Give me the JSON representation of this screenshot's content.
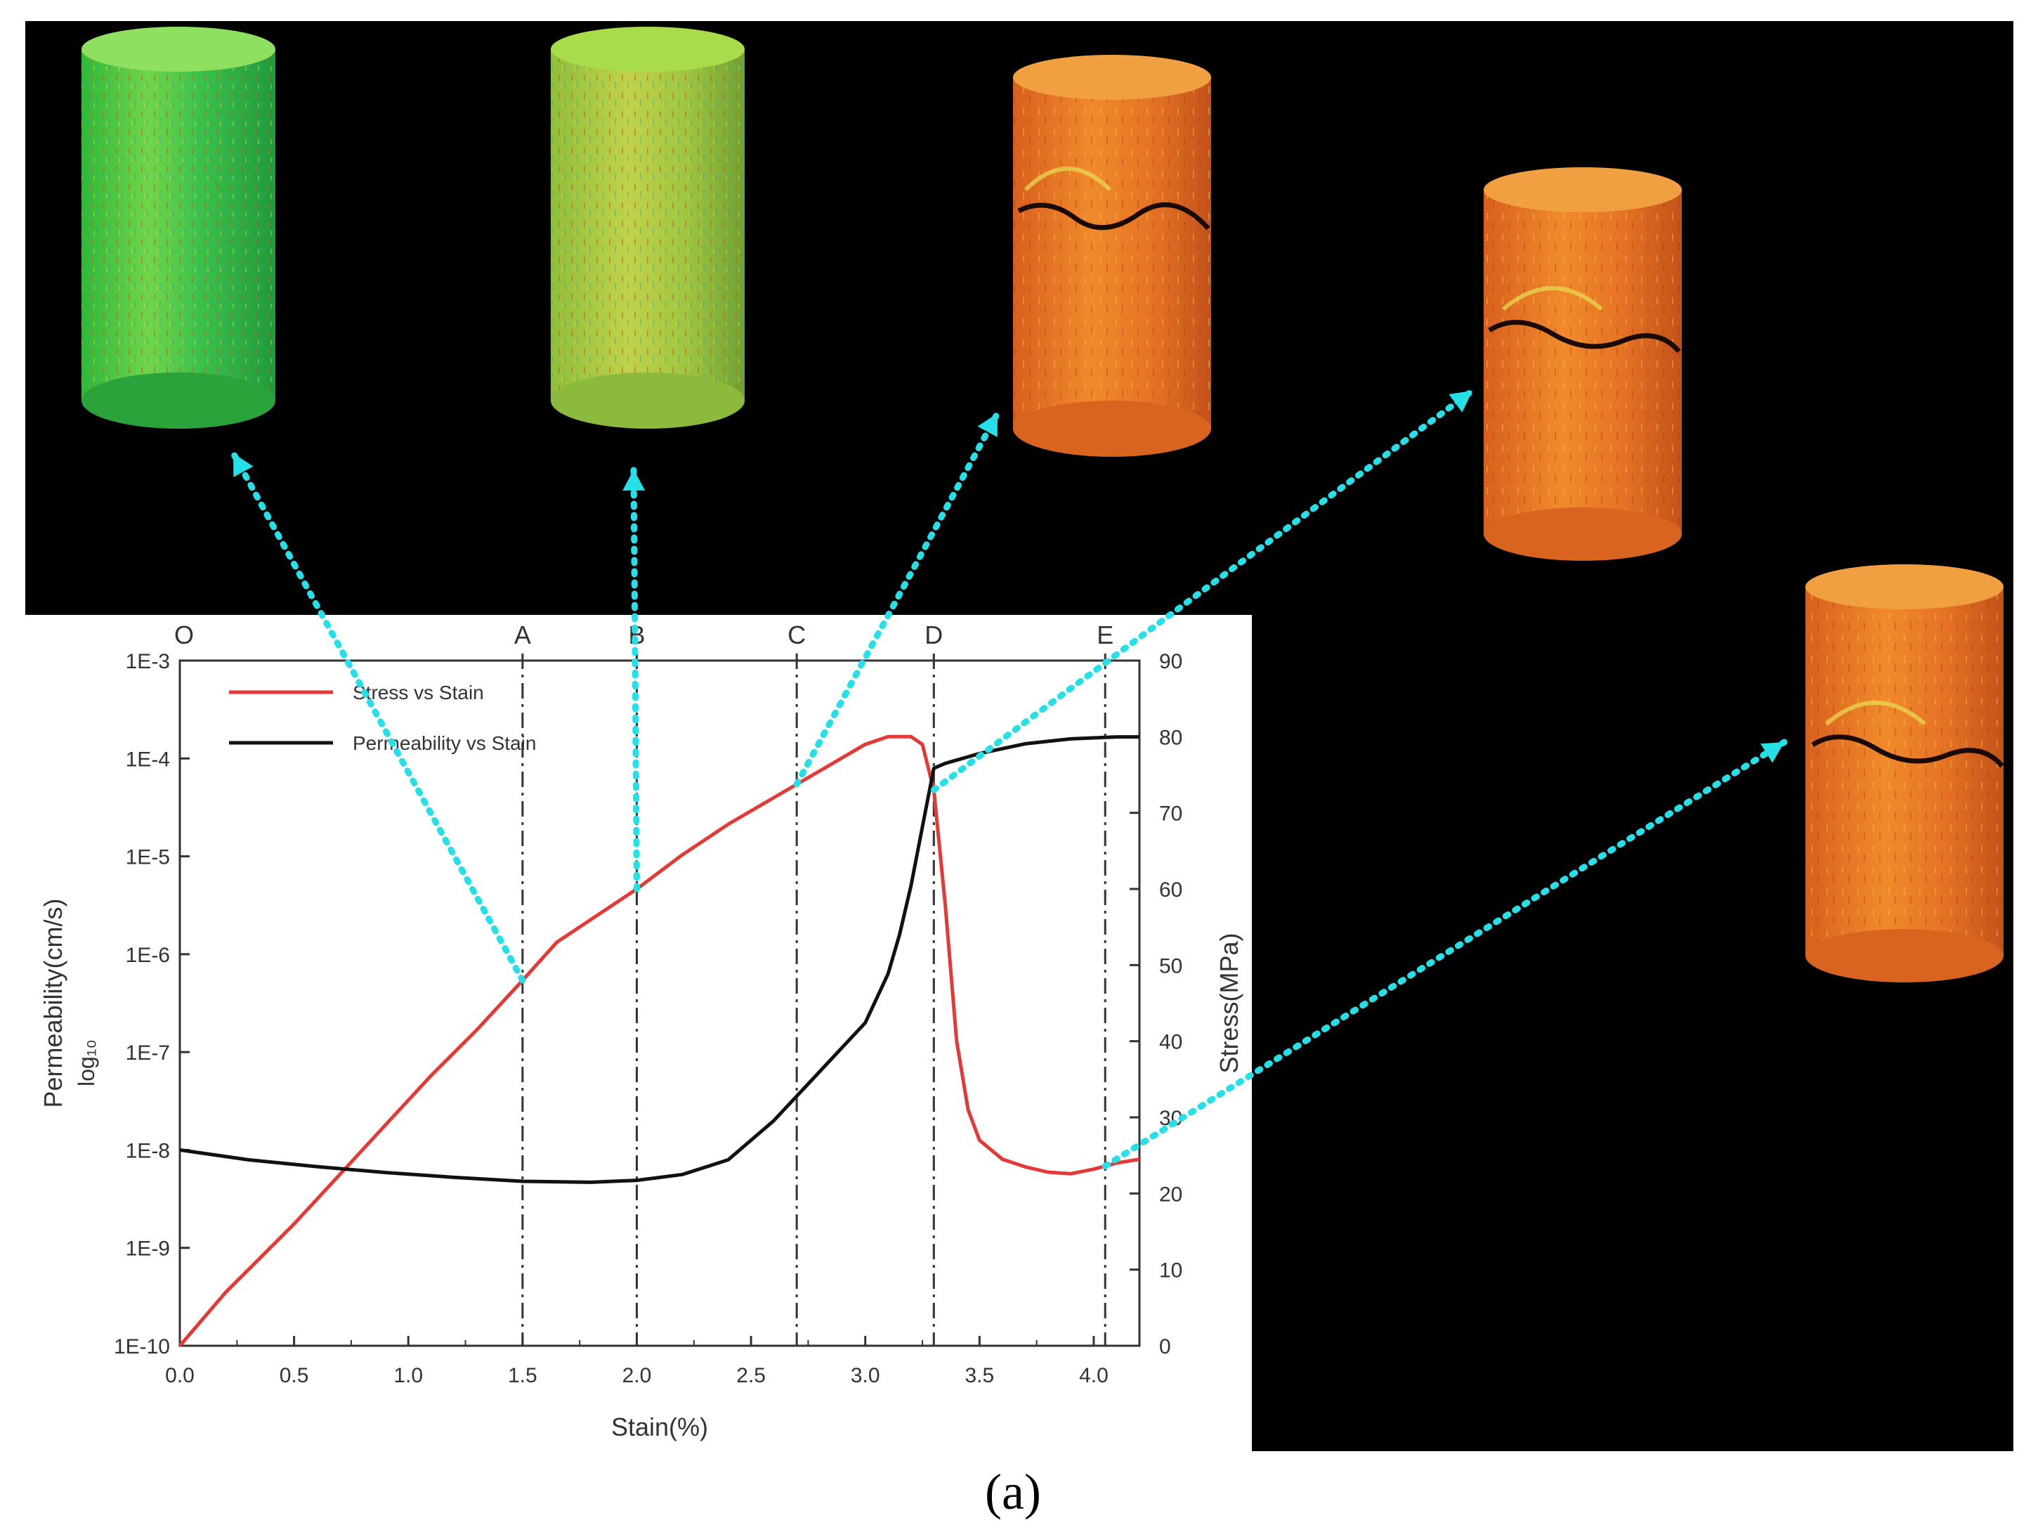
{
  "caption": "(a)",
  "colors": {
    "background": "#000000",
    "plot_panel": "#ffffff",
    "stress": "#e53935",
    "permeability": "#111111",
    "arrow": "#26e0e8",
    "axis": "#333333"
  },
  "chart_data": {
    "type": "line",
    "title": "",
    "xlabel": "Stain(%)",
    "ylabel_left": "Permeability(cm/s)",
    "ylabel_left_sub": "log₁₀",
    "ylabel_right": "Stress(MPa)",
    "xlim": [
      0,
      4.2
    ],
    "x_ticks": [
      "0.0",
      "0.5",
      "1.0",
      "1.5",
      "2.0",
      "2.5",
      "3.0",
      "3.5",
      "4.0"
    ],
    "left_axis": {
      "scale": "log10",
      "ylim_exp": [
        -10,
        -3
      ],
      "tick_labels": [
        "1E-10",
        "1E-9",
        "1E-8",
        "1E-7",
        "1E-6",
        "1E-5",
        "1E-4",
        "1E-3"
      ]
    },
    "right_axis": {
      "ylim": [
        0,
        90
      ],
      "tick_labels": [
        "0",
        "10",
        "20",
        "30",
        "40",
        "50",
        "60",
        "70",
        "80",
        "90"
      ]
    },
    "stage_markers": [
      {
        "label": "O",
        "x": 0.0,
        "line": false
      },
      {
        "label": "A",
        "x": 1.5,
        "line": true
      },
      {
        "label": "B",
        "x": 2.0,
        "line": true
      },
      {
        "label": "C",
        "x": 2.7,
        "line": true
      },
      {
        "label": "D",
        "x": 3.3,
        "line": true
      },
      {
        "label": "E",
        "x": 4.05,
        "line": true
      }
    ],
    "series": [
      {
        "name": "Stress vs Stain",
        "axis": "right",
        "color": "#e53935",
        "x": [
          0.0,
          0.1,
          0.2,
          0.3,
          0.5,
          0.7,
          0.9,
          1.1,
          1.3,
          1.5,
          1.65,
          1.8,
          2.0,
          2.2,
          2.4,
          2.6,
          2.8,
          3.0,
          3.1,
          3.2,
          3.25,
          3.3,
          3.35,
          3.4,
          3.45,
          3.5,
          3.6,
          3.7,
          3.8,
          3.9,
          4.0,
          4.1,
          4.2
        ],
        "values": [
          0.0,
          3.5,
          7.0,
          10.0,
          16.0,
          22.5,
          29.0,
          35.5,
          41.5,
          48.0,
          53.0,
          56.0,
          60.0,
          64.5,
          68.5,
          72.0,
          75.5,
          79.0,
          80.0,
          80.0,
          79.0,
          73.0,
          58.0,
          40.0,
          31.0,
          27.0,
          24.5,
          23.5,
          22.8,
          22.6,
          23.2,
          24.0,
          24.5
        ]
      },
      {
        "name": "Permeability vs Stain",
        "axis": "left",
        "color": "#111111",
        "x": [
          0.0,
          0.3,
          0.6,
          0.9,
          1.2,
          1.5,
          1.8,
          2.0,
          2.2,
          2.4,
          2.6,
          2.7,
          2.8,
          2.9,
          3.0,
          3.1,
          3.15,
          3.2,
          3.25,
          3.3,
          3.35,
          3.5,
          3.7,
          3.9,
          4.1,
          4.2
        ],
        "values": [
          -8.0,
          -8.1,
          -8.17,
          -8.23,
          -8.28,
          -8.32,
          -8.33,
          -8.31,
          -8.25,
          -8.1,
          -7.7,
          -7.45,
          -7.2,
          -6.95,
          -6.7,
          -6.2,
          -5.8,
          -5.3,
          -4.7,
          -4.1,
          -4.05,
          -3.95,
          -3.85,
          -3.8,
          -3.78,
          -3.78
        ]
      }
    ]
  },
  "specimens": [
    {
      "name": "specimen-O-A",
      "stage": "A",
      "palette": "green"
    },
    {
      "name": "specimen-B",
      "stage": "B",
      "palette": "yellowgreen"
    },
    {
      "name": "specimen-C",
      "stage": "C",
      "palette": "orange"
    },
    {
      "name": "specimen-D",
      "stage": "D",
      "palette": "orange"
    },
    {
      "name": "specimen-E",
      "stage": "E",
      "palette": "orange"
    }
  ]
}
